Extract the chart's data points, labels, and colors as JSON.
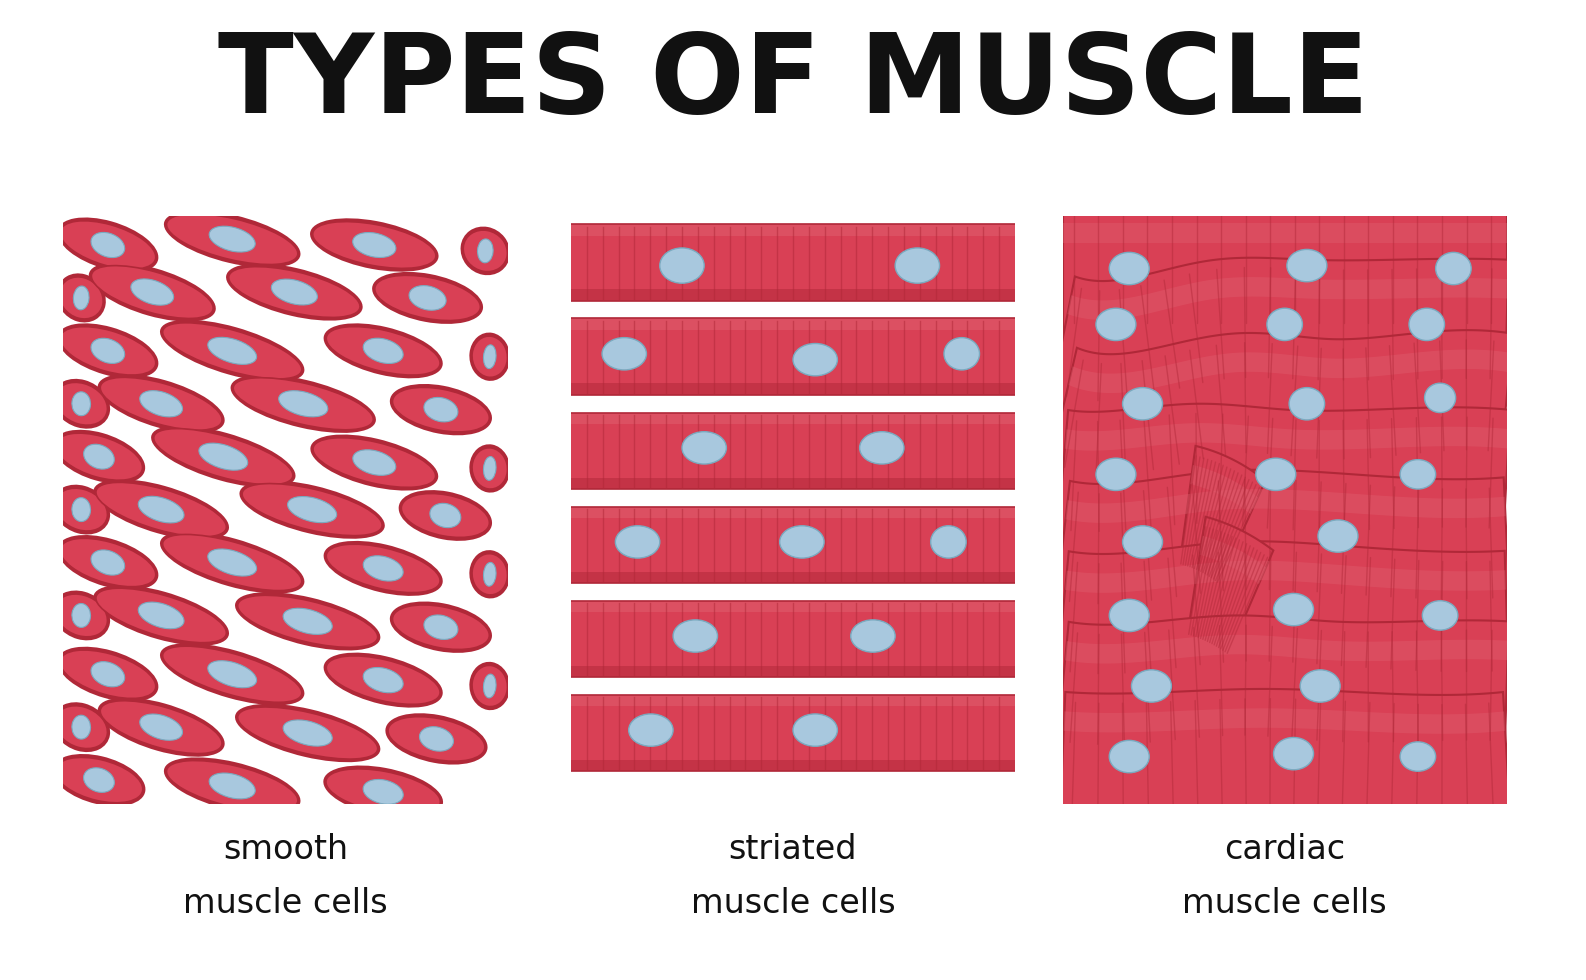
{
  "title": "TYPES OF MUSCLE",
  "title_fontsize": 80,
  "background_color": "#ffffff",
  "panel_bg": "#f8f5d0",
  "panel_border": "#1a1a1a",
  "muscle_red": "#d94055",
  "muscle_red_dark": "#b02838",
  "muscle_red_mid": "#c53348",
  "muscle_red_light": "#e06070",
  "nucleus_blue": "#a8c8de",
  "nucleus_outline": "#7aaac0",
  "labels": [
    "smooth\nmuscle cells",
    "striated\nmuscle cells",
    "cardiac\nmuscle cells"
  ],
  "label_fontsize": 24
}
